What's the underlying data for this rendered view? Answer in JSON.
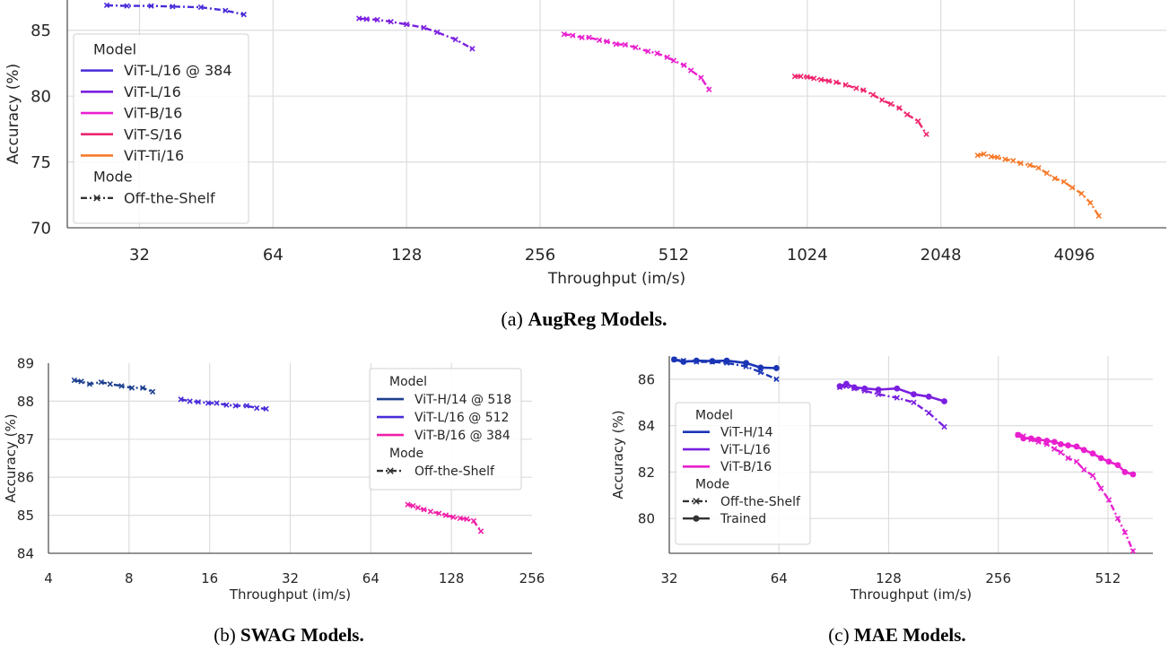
{
  "chart_data": [
    {
      "id": "augreg",
      "type": "line",
      "caption_prefix": "(a) ",
      "caption_bold": "AugReg Models.",
      "xlabel": "Throughput (im/s)",
      "ylabel": "Accuracy (%)",
      "xscale": "log2",
      "xticks": [
        32,
        64,
        128,
        256,
        512,
        1024,
        2048,
        4096
      ],
      "yticks": [
        70,
        75,
        80,
        85
      ],
      "xlim": [
        22,
        6600
      ],
      "ylim": [
        70,
        87.3
      ],
      "grid": true,
      "legend": {
        "placement": "left",
        "model_title": "Model",
        "mode_title": "Mode",
        "modes": [
          {
            "label": "Off-the-Shelf",
            "style": "dashed-x"
          }
        ]
      },
      "series": [
        {
          "name": "ViT-L/16 @ 384",
          "color": "#4a2bd9",
          "mode": "Off-the-Shelf",
          "x": [
            27,
            30,
            34,
            38,
            44,
            50,
            55
          ],
          "y": [
            86.9,
            86.85,
            86.85,
            86.8,
            86.75,
            86.5,
            86.2
          ]
        },
        {
          "name": "ViT-L/16",
          "color": "#7a1fe0",
          "mode": "Off-the-Shelf",
          "x": [
            100,
            104,
            110,
            118,
            128,
            140,
            150,
            165,
            180
          ],
          "y": [
            85.9,
            85.85,
            85.8,
            85.65,
            85.45,
            85.2,
            84.85,
            84.3,
            83.6
          ]
        },
        {
          "name": "ViT-B/16",
          "color": "#e81fcf",
          "mode": "Off-the-Shelf",
          "x": [
            290,
            303,
            318,
            330,
            348,
            362,
            380,
            398,
            420,
            448,
            470,
            495,
            512,
            540,
            560,
            590,
            615
          ],
          "y": [
            84.7,
            84.6,
            84.45,
            84.45,
            84.25,
            84.15,
            83.95,
            83.9,
            83.7,
            83.4,
            83.25,
            82.95,
            82.7,
            82.35,
            81.95,
            81.4,
            80.5
          ]
        },
        {
          "name": "ViT-S/16",
          "color": "#f0256e",
          "mode": "Off-the-Shelf",
          "x": [
            960,
            990,
            1024,
            1060,
            1100,
            1145,
            1190,
            1250,
            1320,
            1370,
            1440,
            1510,
            1580,
            1650,
            1720,
            1820,
            1900
          ],
          "y": [
            81.5,
            81.5,
            81.45,
            81.35,
            81.25,
            81.15,
            81.05,
            80.85,
            80.6,
            80.45,
            80.1,
            79.7,
            79.4,
            79.1,
            78.6,
            78.1,
            77.1
          ]
        },
        {
          "name": "ViT-Ti/16",
          "color": "#f77a2a",
          "mode": "Off-the-Shelf",
          "x": [
            2480,
            2560,
            2660,
            2750,
            2860,
            2980,
            3100,
            3250,
            3400,
            3550,
            3700,
            3880,
            4050,
            4250,
            4450,
            4650
          ],
          "y": [
            75.5,
            75.6,
            75.4,
            75.35,
            75.2,
            75.1,
            74.9,
            74.75,
            74.55,
            74.15,
            73.75,
            73.5,
            73.05,
            72.6,
            71.9,
            70.9
          ]
        }
      ]
    },
    {
      "id": "swag",
      "type": "line",
      "caption_prefix": "(b) ",
      "caption_bold": "SWAG Models.",
      "xlabel": "Throughput (im/s)",
      "ylabel": "Accuracy (%)",
      "xscale": "log2",
      "xticks": [
        4,
        8,
        16,
        32,
        64,
        128,
        256
      ],
      "yticks": [
        84,
        85,
        86,
        87,
        88,
        89
      ],
      "xlim": [
        4,
        256
      ],
      "ylim": [
        84,
        89
      ],
      "grid": true,
      "legend": {
        "placement": "upper-right",
        "model_title": "Model",
        "mode_title": "Mode",
        "modes": [
          {
            "label": "Off-the-Shelf",
            "style": "dashed-x"
          }
        ]
      },
      "series": [
        {
          "name": "ViT-H/14 @ 518",
          "color": "#1d3f8f",
          "mode": "Off-the-Shelf",
          "x": [
            5.0,
            5.3,
            5.7,
            6.3,
            6.8,
            7.5,
            8.2,
            9.0,
            9.8
          ],
          "y": [
            88.55,
            88.52,
            88.45,
            88.5,
            88.45,
            88.4,
            88.35,
            88.35,
            88.25
          ]
        },
        {
          "name": "ViT-L/16 @ 512",
          "color": "#4a2bd9",
          "mode": "Off-the-Shelf",
          "x": [
            12.5,
            13.5,
            14.5,
            15.8,
            17.0,
            18.5,
            20.0,
            22.0,
            24.0,
            26.0
          ],
          "y": [
            88.05,
            88.0,
            87.98,
            87.95,
            87.95,
            87.9,
            87.88,
            87.88,
            87.82,
            87.8
          ]
        },
        {
          "name": "ViT-B/16 @ 384",
          "color": "#f01fa8",
          "mode": "Off-the-Shelf",
          "x": [
            88,
            92,
            96,
            101,
            107,
            115,
            122,
            130,
            138,
            146,
            155,
            165
          ],
          "y": [
            85.28,
            85.25,
            85.2,
            85.15,
            85.1,
            85.05,
            85.0,
            84.95,
            84.92,
            84.9,
            84.85,
            84.58
          ]
        }
      ]
    },
    {
      "id": "mae",
      "type": "line",
      "caption_prefix": "(c) ",
      "caption_bold": "MAE Models.",
      "xlabel": "Throughput (im/s)",
      "ylabel": "Accuracy (%)",
      "xscale": "log2",
      "xticks": [
        32,
        64,
        128,
        256,
        512
      ],
      "yticks": [
        80,
        82,
        84,
        86
      ],
      "xlim": [
        32,
        680
      ],
      "ylim": [
        78.5,
        87.0
      ],
      "grid": true,
      "legend": {
        "placement": "lower-left",
        "model_title": "Model",
        "mode_title": "Mode",
        "modes": [
          {
            "label": "Off-the-Shelf",
            "style": "dashed-x"
          },
          {
            "label": "Trained",
            "style": "solid-dot"
          }
        ]
      },
      "series": [
        {
          "name": "ViT-H/14",
          "color": "#1a35b5",
          "mode": "Off-the-Shelf",
          "x": [
            33,
            35,
            38,
            42,
            46,
            52,
            57,
            63
          ],
          "y": [
            86.85,
            86.8,
            86.75,
            86.75,
            86.7,
            86.55,
            86.3,
            86.0
          ]
        },
        {
          "name": "ViT-H/14",
          "color": "#1a35b5",
          "mode": "Trained",
          "x": [
            33,
            35,
            38,
            42,
            46,
            52,
            57,
            63
          ],
          "y": [
            86.85,
            86.75,
            86.8,
            86.78,
            86.8,
            86.7,
            86.5,
            86.48
          ]
        },
        {
          "name": "ViT-L/16",
          "color": "#7a1fe0",
          "mode": "Off-the-Shelf",
          "x": [
            94,
            98,
            103,
            110,
            120,
            135,
            150,
            165,
            182
          ],
          "y": [
            85.65,
            85.7,
            85.6,
            85.5,
            85.35,
            85.2,
            85.0,
            84.55,
            83.95
          ]
        },
        {
          "name": "ViT-L/16",
          "color": "#7a1fe0",
          "mode": "Trained",
          "x": [
            94,
            98,
            103,
            110,
            120,
            135,
            150,
            165,
            182
          ],
          "y": [
            85.7,
            85.8,
            85.65,
            85.6,
            85.55,
            85.6,
            85.35,
            85.25,
            85.05
          ]
        },
        {
          "name": "ViT-B/16",
          "color": "#e81fcf",
          "mode": "Off-the-Shelf",
          "x": [
            290,
            300,
            315,
            330,
            348,
            365,
            380,
            398,
            420,
            440,
            465,
            490,
            515,
            545,
            570,
            600
          ],
          "y": [
            83.6,
            83.55,
            83.4,
            83.3,
            83.2,
            83.0,
            82.85,
            82.6,
            82.45,
            82.1,
            81.85,
            81.3,
            80.8,
            80.0,
            79.4,
            78.6
          ]
        },
        {
          "name": "ViT-B/16",
          "color": "#e81fcf",
          "mode": "Trained",
          "x": [
            290,
            300,
            315,
            330,
            348,
            365,
            380,
            398,
            420,
            440,
            465,
            490,
            515,
            545,
            570,
            600
          ],
          "y": [
            83.6,
            83.45,
            83.45,
            83.4,
            83.35,
            83.3,
            83.2,
            83.15,
            83.1,
            82.95,
            82.8,
            82.6,
            82.45,
            82.3,
            82.0,
            81.9
          ]
        }
      ]
    }
  ]
}
